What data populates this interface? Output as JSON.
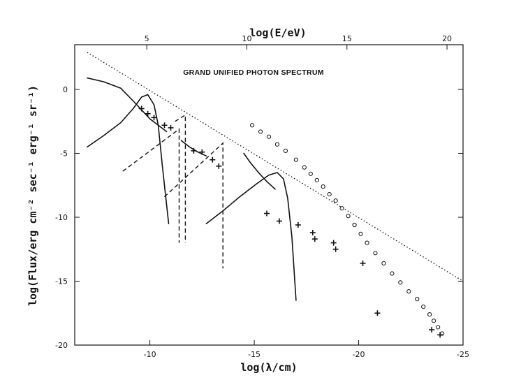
{
  "chart_data": {
    "type": "line",
    "title": "GRAND UNIFIED PHOTON SPECTRUM",
    "xlabel": "log(λ/cm)",
    "ylabel": "log(Flux/erg cm⁻² sec⁻¹ erg⁻¹ sr⁻¹)",
    "x2label": "log(E/eV)",
    "xlim": [
      -6.4,
      -25
    ],
    "ylim": [
      -20,
      3.5
    ],
    "x2lim": [
      1.4,
      20.8
    ],
    "xticks": [
      -10,
      -15,
      -20,
      -25
    ],
    "x2ticks": [
      5,
      10,
      15,
      20
    ],
    "yticks": [
      0,
      -5,
      -10,
      -15,
      -20
    ],
    "series": [
      {
        "style": "dotted",
        "points": [
          [
            -7.0,
            2.9
          ],
          [
            -25.0,
            -15.0
          ]
        ]
      },
      {
        "style": "solid",
        "points": [
          [
            -7.0,
            0.9
          ],
          [
            -7.8,
            0.6
          ],
          [
            -8.6,
            0.1
          ],
          [
            -9.2,
            -0.9
          ],
          [
            -9.6,
            -1.6
          ],
          [
            -10.0,
            -2.3
          ],
          [
            -10.4,
            -2.8
          ],
          [
            -10.8,
            -3.3
          ]
        ]
      },
      {
        "style": "solid",
        "points": [
          [
            -7.0,
            -4.5
          ],
          [
            -7.8,
            -3.6
          ],
          [
            -8.6,
            -2.6
          ],
          [
            -9.2,
            -1.5
          ],
          [
            -9.6,
            -0.6
          ],
          [
            -9.9,
            -0.4
          ],
          [
            -10.2,
            -1.2
          ],
          [
            -10.4,
            -2.8
          ],
          [
            -10.6,
            -6.0
          ],
          [
            -10.8,
            -9.0
          ],
          [
            -10.9,
            -10.5
          ]
        ]
      },
      {
        "style": "solid",
        "points": [
          [
            -12.7,
            -10.5
          ],
          [
            -13.5,
            -9.5
          ],
          [
            -14.3,
            -8.4
          ],
          [
            -15.1,
            -7.4
          ],
          [
            -15.7,
            -6.7
          ],
          [
            -16.1,
            -6.5
          ],
          [
            -16.4,
            -7.0
          ],
          [
            -16.6,
            -8.5
          ],
          [
            -16.8,
            -11.5
          ],
          [
            -16.9,
            -14.0
          ],
          [
            -17.0,
            -16.5
          ]
        ]
      },
      {
        "style": "solid",
        "points": [
          [
            -14.5,
            -5.0
          ],
          [
            -14.8,
            -5.7
          ],
          [
            -15.2,
            -6.5
          ],
          [
            -15.6,
            -7.2
          ],
          [
            -16.0,
            -7.8
          ]
        ]
      },
      {
        "style": "solid",
        "points": [
          [
            -11.5,
            -4.0
          ],
          [
            -11.9,
            -4.5
          ],
          [
            -12.3,
            -4.9
          ],
          [
            -12.7,
            -5.2
          ]
        ]
      },
      {
        "style": "dashed",
        "points": [
          [
            -8.7,
            -6.4
          ],
          [
            -11.4,
            -3.1
          ],
          [
            -11.4,
            -12.0
          ]
        ]
      },
      {
        "style": "dashed",
        "points": [
          [
            -10.7,
            -8.4
          ],
          [
            -13.5,
            -4.2
          ],
          [
            -13.5,
            -14.0
          ]
        ]
      },
      {
        "style": "dashed",
        "points": [
          [
            -11.2,
            -2.5
          ],
          [
            -11.7,
            -2.0
          ],
          [
            -11.7,
            -12.0
          ]
        ]
      }
    ],
    "points_circle": [
      [
        -14.9,
        -2.8
      ],
      [
        -15.3,
        -3.3
      ],
      [
        -15.7,
        -3.7
      ],
      [
        -16.1,
        -4.3
      ],
      [
        -16.5,
        -4.8
      ],
      [
        -17.0,
        -5.5
      ],
      [
        -17.4,
        -6.1
      ],
      [
        -17.7,
        -6.6
      ],
      [
        -18.0,
        -7.1
      ],
      [
        -18.3,
        -7.6
      ],
      [
        -18.6,
        -8.2
      ],
      [
        -18.9,
        -8.7
      ],
      [
        -19.2,
        -9.3
      ],
      [
        -19.5,
        -9.9
      ],
      [
        -19.8,
        -10.6
      ],
      [
        -20.1,
        -11.3
      ],
      [
        -20.4,
        -12.0
      ],
      [
        -20.8,
        -12.8
      ],
      [
        -21.2,
        -13.6
      ],
      [
        -21.6,
        -14.4
      ],
      [
        -22.0,
        -15.1
      ],
      [
        -22.4,
        -15.8
      ],
      [
        -22.8,
        -16.4
      ],
      [
        -23.1,
        -17.0
      ],
      [
        -23.4,
        -17.6
      ],
      [
        -23.6,
        -18.1
      ],
      [
        -23.8,
        -18.6
      ],
      [
        -24.0,
        -19.1
      ]
    ],
    "points_cross": [
      [
        -9.6,
        -1.5
      ],
      [
        -9.9,
        -1.9
      ],
      [
        -10.2,
        -2.2
      ],
      [
        -10.7,
        -2.8
      ],
      [
        -11.0,
        -3.0
      ],
      [
        -12.1,
        -4.8
      ],
      [
        -12.5,
        -4.9
      ],
      [
        -13.0,
        -5.5
      ],
      [
        -13.3,
        -6.0
      ],
      [
        -15.6,
        -9.7
      ],
      [
        -16.2,
        -10.3
      ],
      [
        -17.1,
        -10.6
      ],
      [
        -17.8,
        -11.2
      ],
      [
        -17.9,
        -11.7
      ],
      [
        -18.8,
        -12.0
      ],
      [
        -18.9,
        -12.5
      ],
      [
        -20.2,
        -13.6
      ],
      [
        -20.9,
        -17.5
      ],
      [
        -23.5,
        -18.8
      ],
      [
        -23.9,
        -19.2
      ]
    ]
  }
}
